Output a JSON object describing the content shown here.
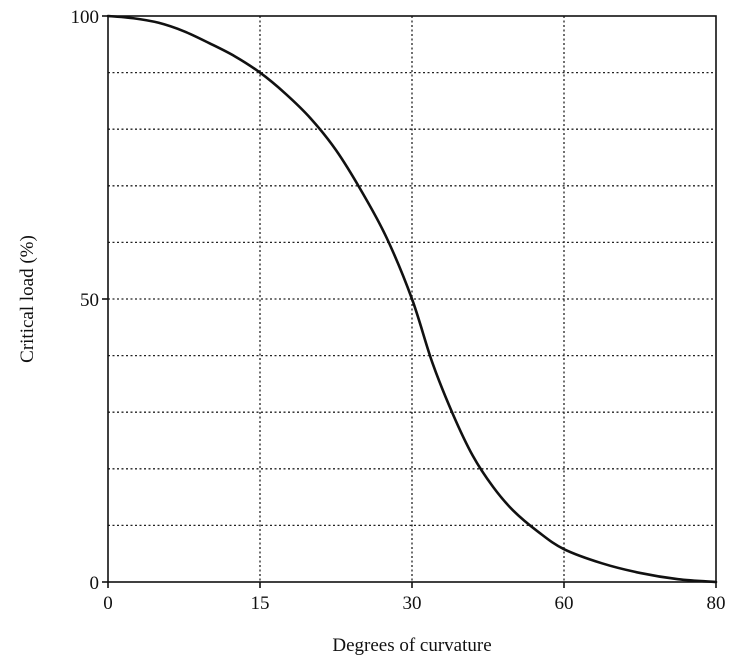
{
  "chart_data": {
    "type": "line",
    "title": "",
    "xlabel": "Degrees of curvature",
    "ylabel": "Critical load (%)",
    "x_ticks": [
      "0",
      "15",
      "30",
      "60",
      "80"
    ],
    "y_ticks": [
      "0",
      "50",
      "100"
    ],
    "ylim": [
      0,
      100
    ],
    "grid": true,
    "series": [
      {
        "x": [
          0,
          2.5,
          5,
          7.5,
          10,
          12.5,
          15,
          17.5,
          20,
          22.5,
          25,
          27.5,
          30,
          34,
          38,
          42,
          46,
          50,
          55,
          60,
          65,
          70,
          75,
          80
        ],
        "y": [
          100,
          99.6,
          98.8,
          97.3,
          95.2,
          92.9,
          90,
          86.3,
          81.9,
          76.3,
          69.1,
          60.8,
          50,
          38.8,
          29.8,
          22.3,
          16.8,
          12.6,
          8.8,
          5.8,
          3.3,
          1.6,
          0.5,
          0
        ]
      }
    ]
  }
}
